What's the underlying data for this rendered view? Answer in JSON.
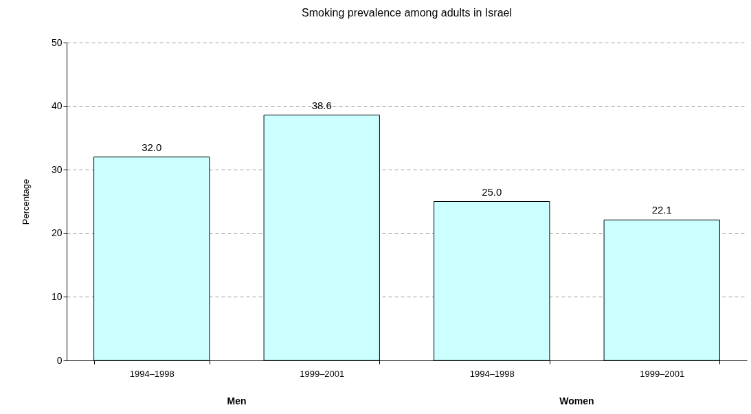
{
  "chart_data": {
    "type": "bar",
    "title": "Smoking prevalence among adults in Israel",
    "ylabel": "Percentage",
    "categories": [
      "1994–1998",
      "1999–2001",
      "1994–1998",
      "1999–2001"
    ],
    "values": [
      32.0,
      38.6,
      25.0,
      22.1
    ],
    "color": "#ccffff",
    "value_labels": [
      "32.0",
      "38.6",
      "25.0",
      "22.1"
    ],
    "annotations": [
      "Men",
      "Women"
    ],
    "ylim": [
      0,
      50
    ],
    "yticks": [
      0,
      10,
      20,
      30,
      40,
      50
    ],
    "grid": "y"
  }
}
